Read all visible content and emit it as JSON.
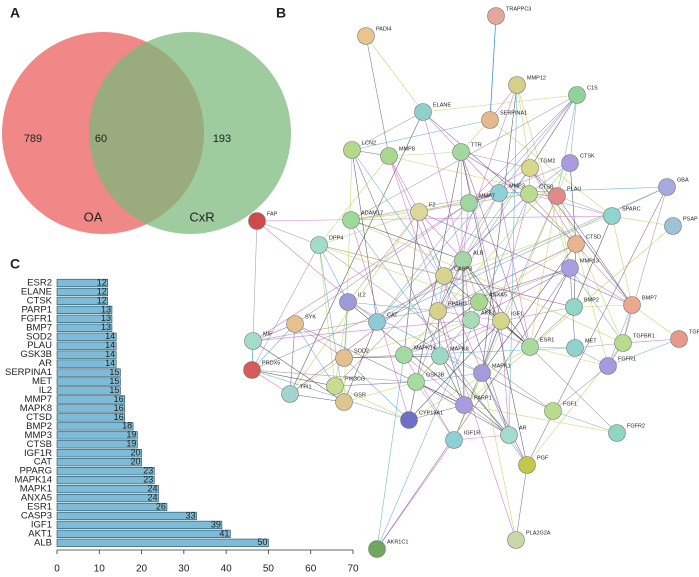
{
  "chart_data": [
    {
      "type": "venn",
      "panel_label": "A",
      "sets": [
        {
          "name": "OA",
          "color": "#ef7b7b",
          "only": 789
        },
        {
          "name": "CxR",
          "color": "#79b979",
          "only": 193
        }
      ],
      "intersection": 60
    },
    {
      "type": "network",
      "panel_label": "B",
      "nodes": [
        {
          "label": "TRAPPC3",
          "color": "#e6a79b"
        },
        {
          "label": "PADI4",
          "color": "#e9c48e"
        },
        {
          "label": "MMP12",
          "color": "#d6cf8a"
        },
        {
          "label": "C1S",
          "color": "#8fd49a"
        },
        {
          "label": "ELANE",
          "color": "#8fd1c9"
        },
        {
          "label": "SERPINA1",
          "color": "#e6b88e"
        },
        {
          "label": "LCN2",
          "color": "#b5d98a"
        },
        {
          "label": "MMP8",
          "color": "#a9d98e"
        },
        {
          "label": "TTR",
          "color": "#a3d9a0"
        },
        {
          "label": "CTSK",
          "color": "#a99be0"
        },
        {
          "label": "TGM2",
          "color": "#d8d88c"
        },
        {
          "label": "PLAU",
          "color": "#e28a8a"
        },
        {
          "label": "MMP3",
          "color": "#8fcfd6"
        },
        {
          "label": "MMP7",
          "color": "#a0d6a0"
        },
        {
          "label": "CTSB",
          "color": "#b9dc8e"
        },
        {
          "label": "ADAM17",
          "color": "#9fd99a"
        },
        {
          "label": "F2",
          "color": "#dcd89a"
        },
        {
          "label": "GBA",
          "color": "#a9a9e0"
        },
        {
          "label": "PSAP",
          "color": "#9ec2d6"
        },
        {
          "label": "SPARC",
          "color": "#8ed5cf"
        },
        {
          "label": "FAP",
          "color": "#cf4a4a"
        },
        {
          "label": "DPP4",
          "color": "#a4dccb"
        },
        {
          "label": "CTSD",
          "color": "#e9b48f"
        },
        {
          "label": "MMP13",
          "color": "#a79fe0"
        },
        {
          "label": "ALB",
          "color": "#a6d6a6"
        },
        {
          "label": "BMP2",
          "color": "#93d6c6"
        },
        {
          "label": "BMP7",
          "color": "#e9a88f"
        },
        {
          "label": "IL2",
          "color": "#9d9ad8"
        },
        {
          "label": "CASP3",
          "color": "#d7d48f"
        },
        {
          "label": "ANXA5",
          "color": "#a8d88e"
        },
        {
          "label": "CAT",
          "color": "#8fcad8"
        },
        {
          "label": "PPARG",
          "color": "#d6d28c"
        },
        {
          "label": "IGF1",
          "color": "#d4d68c"
        },
        {
          "label": "AKT1",
          "color": "#a8dcb8"
        },
        {
          "label": "SYK",
          "color": "#e6c08f"
        },
        {
          "label": "MIF",
          "color": "#a4dccb"
        },
        {
          "label": "TGFBI",
          "color": "#e89a8a"
        },
        {
          "label": "ESR1",
          "color": "#a7dc9c"
        },
        {
          "label": "MET",
          "color": "#8fd3cc"
        },
        {
          "label": "TGFBR1",
          "color": "#b7dc8e"
        },
        {
          "label": "SOD2",
          "color": "#e4c08c"
        },
        {
          "label": "MAPK14",
          "color": "#a3d9a3"
        },
        {
          "label": "MAPK8",
          "color": "#9dd8c6"
        },
        {
          "label": "GSK3B",
          "color": "#a6dca0"
        },
        {
          "label": "MAPK1",
          "color": "#a39be0"
        },
        {
          "label": "PRDX5",
          "color": "#d85a5a"
        },
        {
          "label": "TPI1",
          "color": "#9fd4cf"
        },
        {
          "label": "PIK3CG",
          "color": "#c8dc8e"
        },
        {
          "label": "GSR",
          "color": "#dcc88e"
        },
        {
          "label": "PARP1",
          "color": "#a99be0"
        },
        {
          "label": "FGFR1",
          "color": "#a49ae0"
        },
        {
          "label": "FGF1",
          "color": "#b8dc8c"
        },
        {
          "label": "CYP19A1",
          "color": "#6f6fc8"
        },
        {
          "label": "IGF1R",
          "color": "#8fd0d6"
        },
        {
          "label": "AR",
          "color": "#a3dccd"
        },
        {
          "label": "FGFR2",
          "color": "#8fd6c2"
        },
        {
          "label": "PGF",
          "color": "#c2c84a"
        },
        {
          "label": "PLA2G2A",
          "color": "#c9d7a9"
        },
        {
          "label": "AKR1C1",
          "color": "#6fa85a"
        }
      ]
    },
    {
      "type": "bar",
      "orientation": "horizontal",
      "panel_label": "C",
      "color": "#7cbcd8",
      "categories": [
        "ESR2",
        "ELANE",
        "CTSK",
        "PARP1",
        "FGFR1",
        "BMP7",
        "SOD2",
        "PLAU",
        "GSK3B",
        "AR",
        "SERPINA1",
        "MET",
        "IL2",
        "MMP7",
        "MAPK8",
        "CTSD",
        "BMP2",
        "MMP3",
        "CTSB",
        "IGF1R",
        "CAT",
        "PPARG",
        "MAPK14",
        "MAPK1",
        "ANXA5",
        "ESR1",
        "CASP3",
        "IGF1",
        "AKT1",
        "ALB"
      ],
      "values": [
        12,
        12,
        12,
        13,
        13,
        13,
        14,
        14,
        14,
        14,
        15,
        15,
        15,
        16,
        16,
        16,
        18,
        19,
        19,
        20,
        20,
        23,
        23,
        24,
        24,
        26,
        33,
        39,
        41,
        50
      ],
      "xlim": [
        0,
        70
      ],
      "xticks": [
        0,
        10,
        20,
        30,
        40,
        50,
        60,
        70
      ]
    }
  ]
}
